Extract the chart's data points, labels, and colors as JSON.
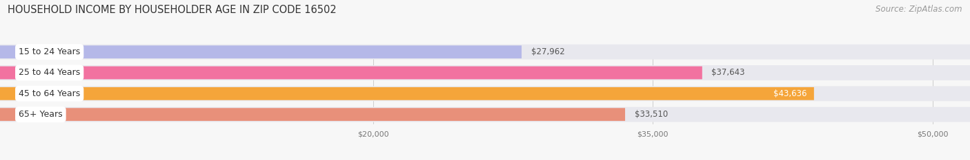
{
  "title": "HOUSEHOLD INCOME BY HOUSEHOLDER AGE IN ZIP CODE 16502",
  "source": "Source: ZipAtlas.com",
  "categories": [
    "15 to 24 Years",
    "25 to 44 Years",
    "45 to 64 Years",
    "65+ Years"
  ],
  "values": [
    27962,
    37643,
    43636,
    33510
  ],
  "bar_colors": [
    "#b5b8e8",
    "#f272a0",
    "#f5a53a",
    "#e8907a"
  ],
  "track_color": "#e8e8ee",
  "bar_labels": [
    "$27,962",
    "$37,643",
    "$43,636",
    "$33,510"
  ],
  "label_colors": [
    "#555555",
    "#555555",
    "#ffffff",
    "#555555"
  ],
  "xmin": 0,
  "xmax": 52000,
  "xlim_display": [
    0,
    52000
  ],
  "x_ticks": [
    20000,
    35000,
    50000
  ],
  "x_tick_labels": [
    "$20,000",
    "$35,000",
    "$50,000"
  ],
  "background_color": "#f7f7f7",
  "title_fontsize": 10.5,
  "source_fontsize": 8.5,
  "bar_label_fontsize": 8.5,
  "cat_label_fontsize": 9
}
